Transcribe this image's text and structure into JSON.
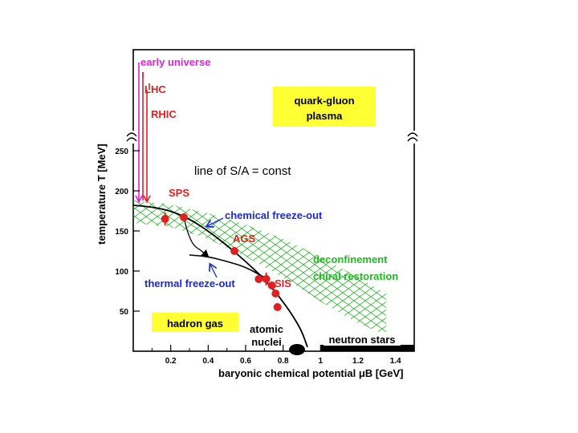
{
  "colors": {
    "magenta": "#e020e0",
    "red": "#e02020",
    "blue": "#1a2ad0",
    "green": "#22b822",
    "yellow": "#ffff33",
    "black": "#000000"
  },
  "chart_data": {
    "type": "scatter",
    "title": "",
    "xlabel": "baryonic chemical potential μB [GeV]",
    "ylabel": "temperature T [MeV]",
    "xlim": [
      0,
      1.5
    ],
    "ylim": [
      0,
      260
    ],
    "x_ticks": [
      "0.2",
      "0.4",
      "0.6",
      "0.8",
      "1",
      "1.2",
      "1.4"
    ],
    "y_ticks": [
      "50",
      "100",
      "150",
      "200",
      "250"
    ],
    "grid": false,
    "axis_break_above_T": 260,
    "series": [
      {
        "name": "chemical freeze-out",
        "points": [
          {
            "x": 0.17,
            "y": 165,
            "yerr": 8
          },
          {
            "x": 0.27,
            "y": 167
          },
          {
            "x": 0.54,
            "y": 125
          },
          {
            "x": 0.67,
            "y": 90
          },
          {
            "x": 0.71,
            "y": 90,
            "yerr": 8
          },
          {
            "x": 0.74,
            "y": 82
          },
          {
            "x": 0.76,
            "y": 72
          },
          {
            "x": 0.77,
            "y": 55
          }
        ]
      }
    ],
    "curves": {
      "chemical_freezeout": [
        [
          0.0,
          182
        ],
        [
          0.1,
          180
        ],
        [
          0.2,
          175
        ],
        [
          0.3,
          165
        ],
        [
          0.4,
          150
        ],
        [
          0.5,
          132
        ],
        [
          0.6,
          112
        ],
        [
          0.7,
          90
        ],
        [
          0.78,
          68
        ],
        [
          0.85,
          45
        ],
        [
          0.9,
          25
        ],
        [
          0.93,
          5
        ]
      ],
      "thermal_freezeout": [
        [
          0.3,
          120
        ],
        [
          0.4,
          118
        ],
        [
          0.5,
          112
        ],
        [
          0.6,
          105
        ],
        [
          0.7,
          92
        ]
      ],
      "trajectory": [
        [
          0.27,
          167
        ],
        [
          0.29,
          148
        ],
        [
          0.32,
          132
        ],
        [
          0.36,
          126
        ],
        [
          0.4,
          118
        ]
      ],
      "band_upper": [
        [
          0.0,
          188
        ],
        [
          0.2,
          183
        ],
        [
          0.4,
          172
        ],
        [
          0.6,
          158
        ],
        [
          0.8,
          140
        ],
        [
          1.0,
          118
        ],
        [
          1.2,
          92
        ],
        [
          1.35,
          72
        ]
      ],
      "band_lower": [
        [
          0.0,
          160
        ],
        [
          0.2,
          155
        ],
        [
          0.4,
          140
        ],
        [
          0.6,
          118
        ],
        [
          0.8,
          92
        ],
        [
          1.0,
          62
        ],
        [
          1.2,
          35
        ],
        [
          1.35,
          20
        ]
      ]
    },
    "annotations": {
      "early_universe": "early universe",
      "lhc": "LHC",
      "rhic": "RHIC",
      "qgp_line1": "quark-gluon",
      "qgp_line2": "plasma",
      "sa_line": "line of S/A = const",
      "sps": "SPS",
      "chem_freeze": "chemical freeze-out",
      "ags": "AGS",
      "deconf": "deconfinement",
      "chiral": "chiral restoration",
      "thermal_freeze": "thermal freeze-out",
      "sis": "SIS",
      "hadron_gas": "hadron gas",
      "atomic_line1": "atomic",
      "atomic_line2": "nuclei",
      "neutron_stars": "neutron stars"
    }
  }
}
